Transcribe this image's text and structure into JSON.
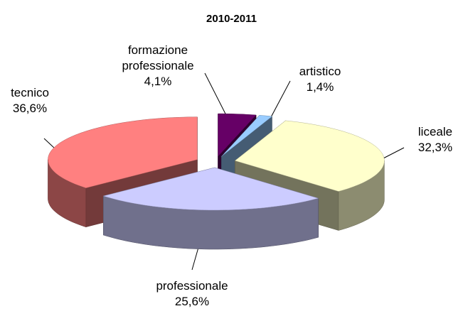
{
  "chart_data": {
    "type": "pie3d",
    "title": "2010-2011",
    "categories": [
      "formazione professionale",
      "artistico",
      "liceale",
      "professionale",
      "tecnico"
    ],
    "values": [
      4.1,
      1.4,
      32.3,
      25.6,
      36.6
    ],
    "value_labels": [
      "4,1%",
      "1,4%",
      "32,3%",
      "25,6%",
      "36,6%"
    ],
    "colors": [
      "#660066",
      "#99ccff",
      "#ffffcc",
      "#ccccff",
      "#ff8080"
    ]
  }
}
